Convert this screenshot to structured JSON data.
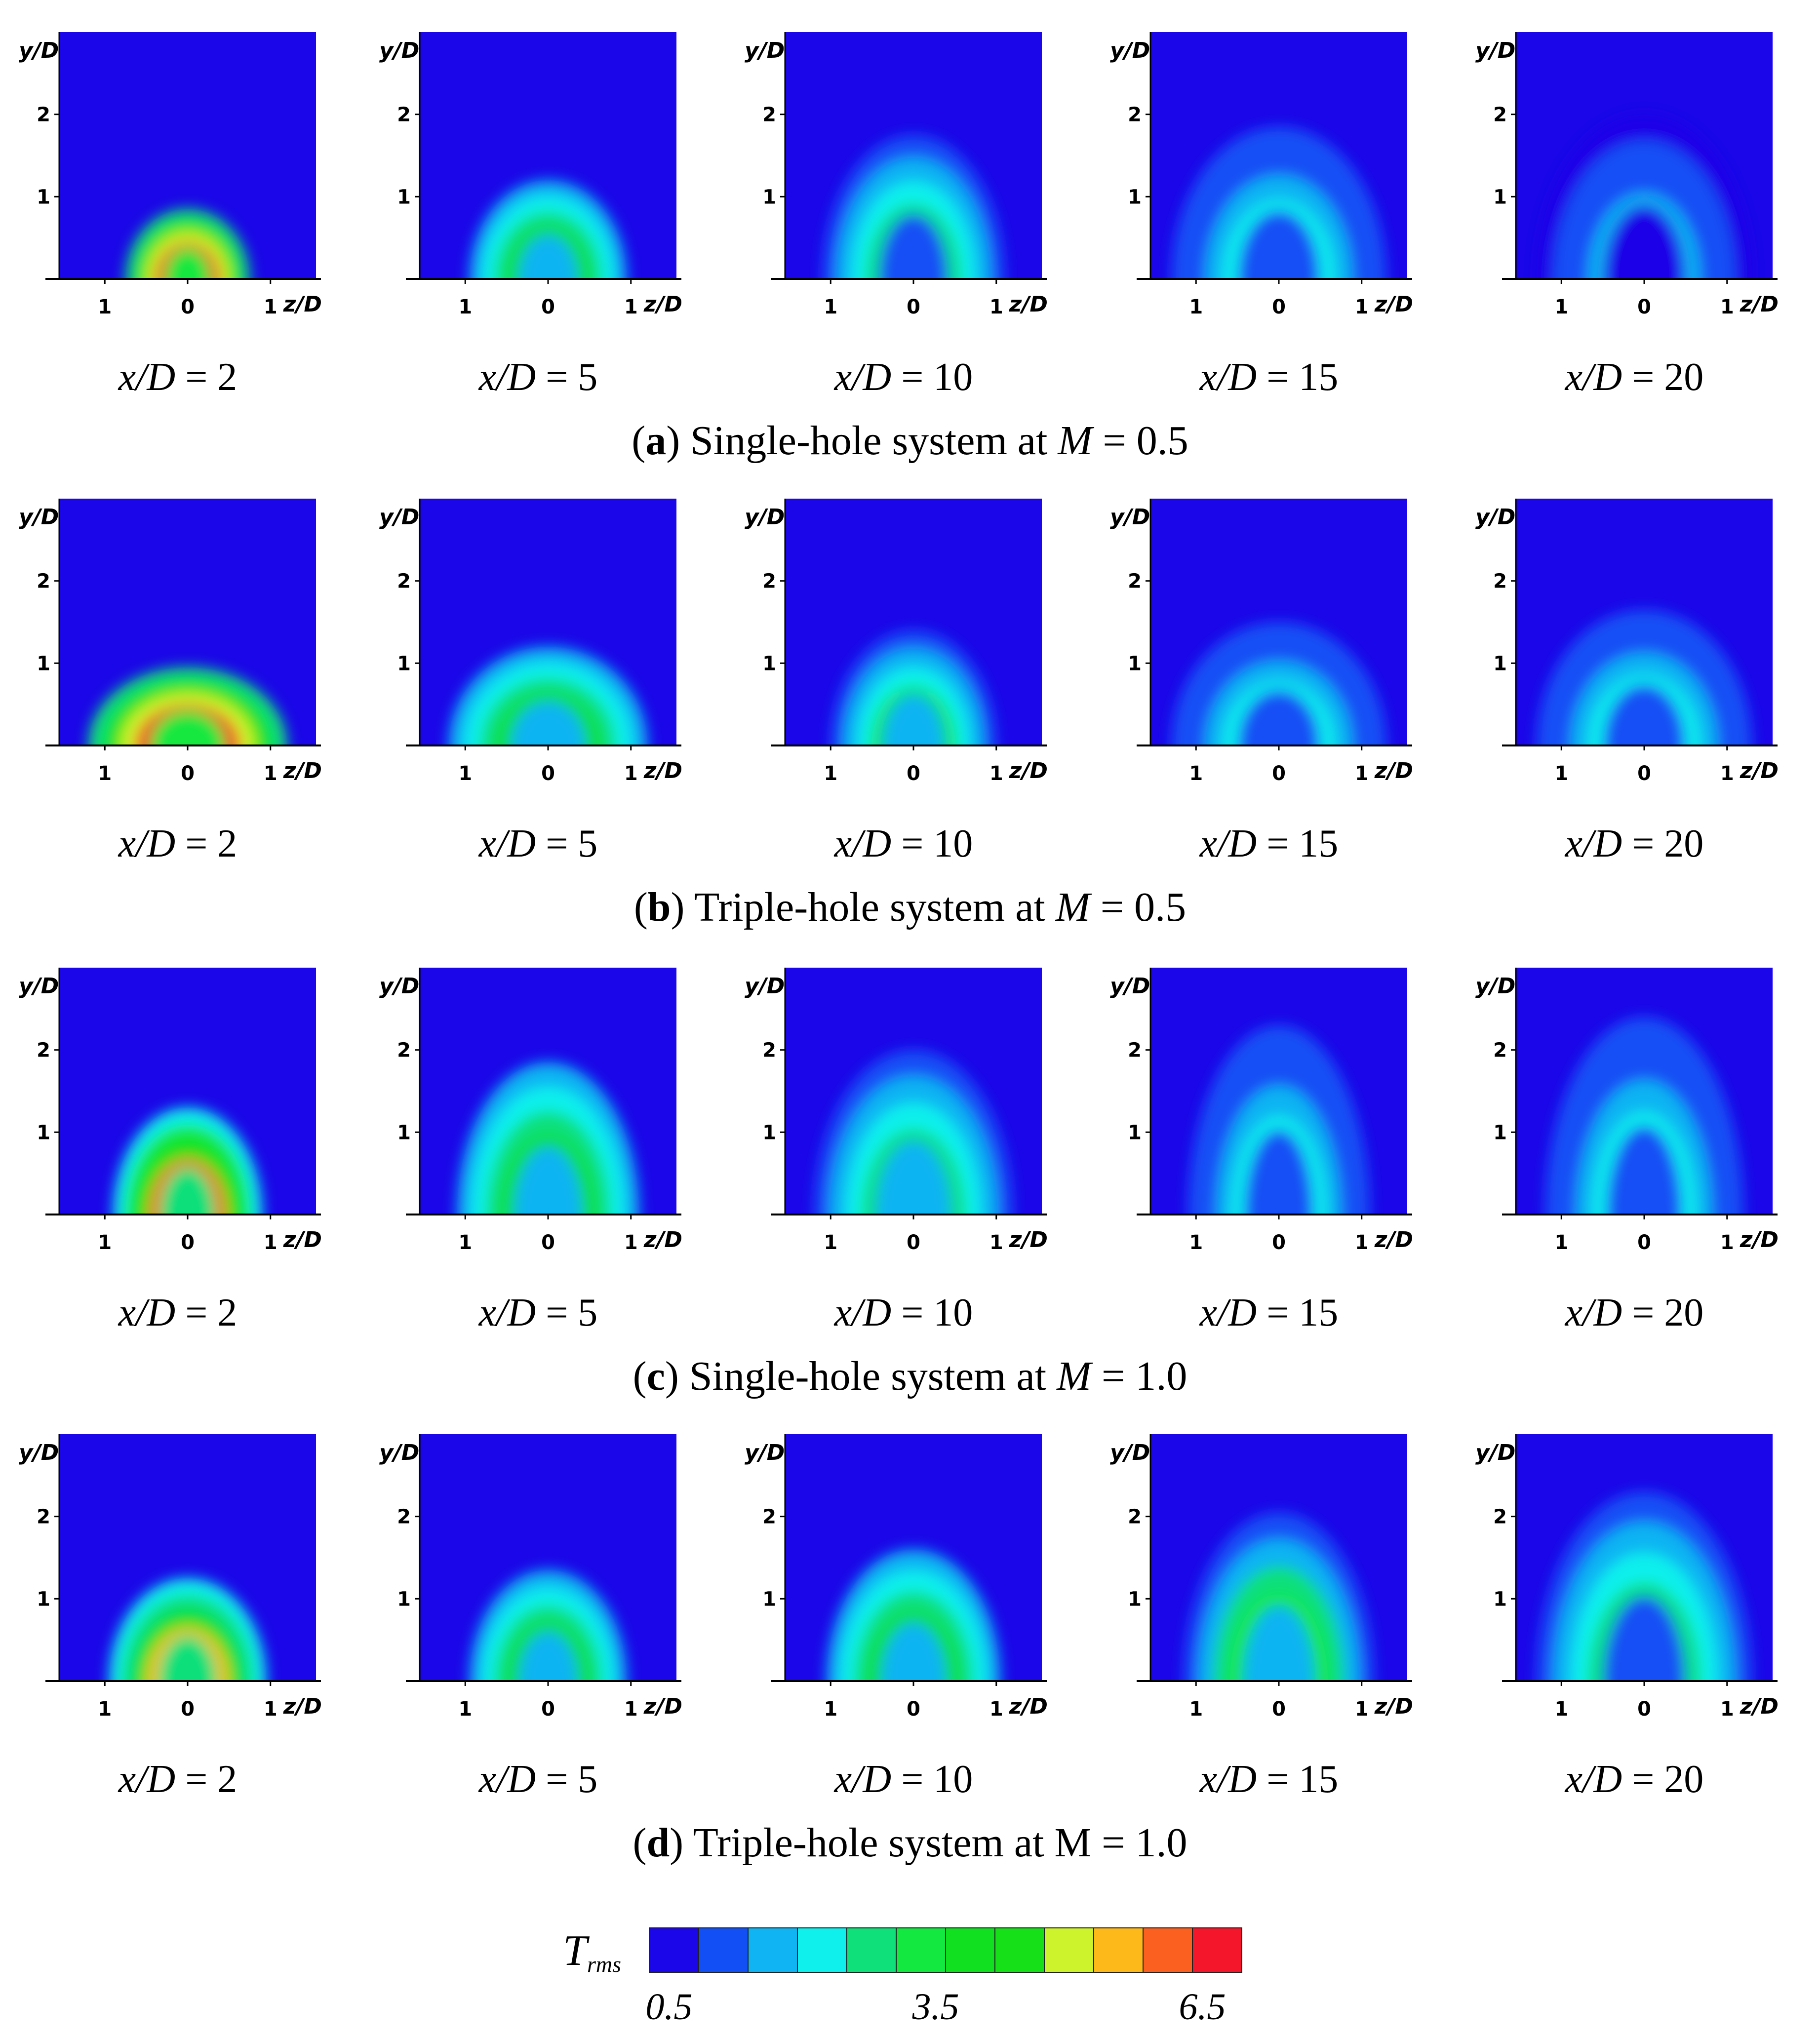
{
  "figure": {
    "rows": [
      {
        "letter": "a",
        "text": " Single-hole system at ",
        "param": "M",
        "value": " = 0.5"
      },
      {
        "letter": "b",
        "text": " Triple-hole system at ",
        "param": "M",
        "value": " = 0.5"
      },
      {
        "letter": "c",
        "text": " Single-hole system at ",
        "param": "M",
        "value": " = 1.0"
      },
      {
        "letter": "d",
        "text": " Triple-hole system at M = 1.0",
        "param": "",
        "value": ""
      }
    ],
    "columns": [
      "2",
      "5",
      "10",
      "15",
      "20"
    ],
    "panel_label_prefix": "x/D",
    "panel_label_eq": " = ",
    "colorbar": {
      "symbol": "T",
      "subscript": "rms",
      "ticks": [
        "0.5",
        "3.5",
        "6.5"
      ],
      "colors": [
        "#1a06e8",
        "#1250f5",
        "#10b4f2",
        "#0ff0ec",
        "#10e07a",
        "#12e840",
        "#10e020",
        "#16e018",
        "#cdf32c",
        "#fdb81a",
        "#fb6020",
        "#f4162a"
      ]
    }
  },
  "chart_data": {
    "type": "heatmap",
    "description_units": "T_rms contour maps in the y/D – z/D plane",
    "xlabel": "z/D",
    "ylabel": "y/D",
    "x_ticks": [
      "1",
      "0",
      "1"
    ],
    "y_ticks": [
      "1",
      "2"
    ],
    "xlim": [
      -1.0,
      1.0
    ],
    "ylim": [
      0,
      3
    ],
    "colorbar": {
      "label": "T_rms",
      "range": [
        0.5,
        6.5
      ],
      "ticks": [
        0.5,
        3.5,
        6.5
      ]
    },
    "panels": [
      {
        "row": "a",
        "x_over_D": 2,
        "peak_Trms": 6.3,
        "plume_height_yD": 0.85,
        "plume_half_width_zD": 0.75
      },
      {
        "row": "a",
        "x_over_D": 5,
        "peak_Trms": 3.5,
        "plume_height_yD": 1.2,
        "plume_half_width_zD": 0.95
      },
      {
        "row": "a",
        "x_over_D": 10,
        "peak_Trms": 2.6,
        "plume_height_yD": 1.75,
        "plume_half_width_zD": 1.1
      },
      {
        "row": "a",
        "x_over_D": 15,
        "peak_Trms": 2.0,
        "plume_height_yD": 1.85,
        "plume_half_width_zD": 1.3
      },
      {
        "row": "a",
        "x_over_D": 20,
        "peak_Trms": 1.6,
        "plume_height_yD": 2.0,
        "plume_half_width_zD": 1.3
      },
      {
        "row": "b",
        "x_over_D": 2,
        "peak_Trms": 6.4,
        "plume_height_yD": 0.95,
        "plume_half_width_zD": 1.2
      },
      {
        "row": "b",
        "x_over_D": 5,
        "peak_Trms": 3.6,
        "plume_height_yD": 1.2,
        "plume_half_width_zD": 1.2
      },
      {
        "row": "b",
        "x_over_D": 10,
        "peak_Trms": 3.0,
        "plume_height_yD": 1.4,
        "plume_half_width_zD": 1.0
      },
      {
        "row": "b",
        "x_over_D": 15,
        "peak_Trms": 2.2,
        "plume_height_yD": 1.5,
        "plume_half_width_zD": 1.3
      },
      {
        "row": "b",
        "x_over_D": 20,
        "peak_Trms": 2.0,
        "plume_height_yD": 1.65,
        "plume_half_width_zD": 1.3
      },
      {
        "row": "c",
        "x_over_D": 2,
        "peak_Trms": 5.8,
        "plume_height_yD": 1.3,
        "plume_half_width_zD": 0.9
      },
      {
        "row": "c",
        "x_over_D": 5,
        "peak_Trms": 3.6,
        "plume_height_yD": 1.85,
        "plume_half_width_zD": 1.1
      },
      {
        "row": "c",
        "x_over_D": 10,
        "peak_Trms": 2.8,
        "plume_height_yD": 2.0,
        "plume_half_width_zD": 1.2
      },
      {
        "row": "c",
        "x_over_D": 15,
        "peak_Trms": 2.2,
        "plume_height_yD": 2.3,
        "plume_half_width_zD": 1.1
      },
      {
        "row": "c",
        "x_over_D": 20,
        "peak_Trms": 2.0,
        "plume_height_yD": 2.4,
        "plume_half_width_zD": 1.2
      },
      {
        "row": "d",
        "x_over_D": 2,
        "peak_Trms": 5.0,
        "plume_height_yD": 1.25,
        "plume_half_width_zD": 0.95
      },
      {
        "row": "d",
        "x_over_D": 5,
        "peak_Trms": 3.6,
        "plume_height_yD": 1.35,
        "plume_half_width_zD": 0.95
      },
      {
        "row": "d",
        "x_over_D": 10,
        "peak_Trms": 3.5,
        "plume_height_yD": 1.6,
        "plume_half_width_zD": 1.05
      },
      {
        "row": "d",
        "x_over_D": 15,
        "peak_Trms": 3.2,
        "plume_height_yD": 2.05,
        "plume_half_width_zD": 1.15
      },
      {
        "row": "d",
        "x_over_D": 20,
        "peak_Trms": 2.6,
        "plume_height_yD": 2.3,
        "plume_half_width_zD": 1.3
      }
    ]
  }
}
